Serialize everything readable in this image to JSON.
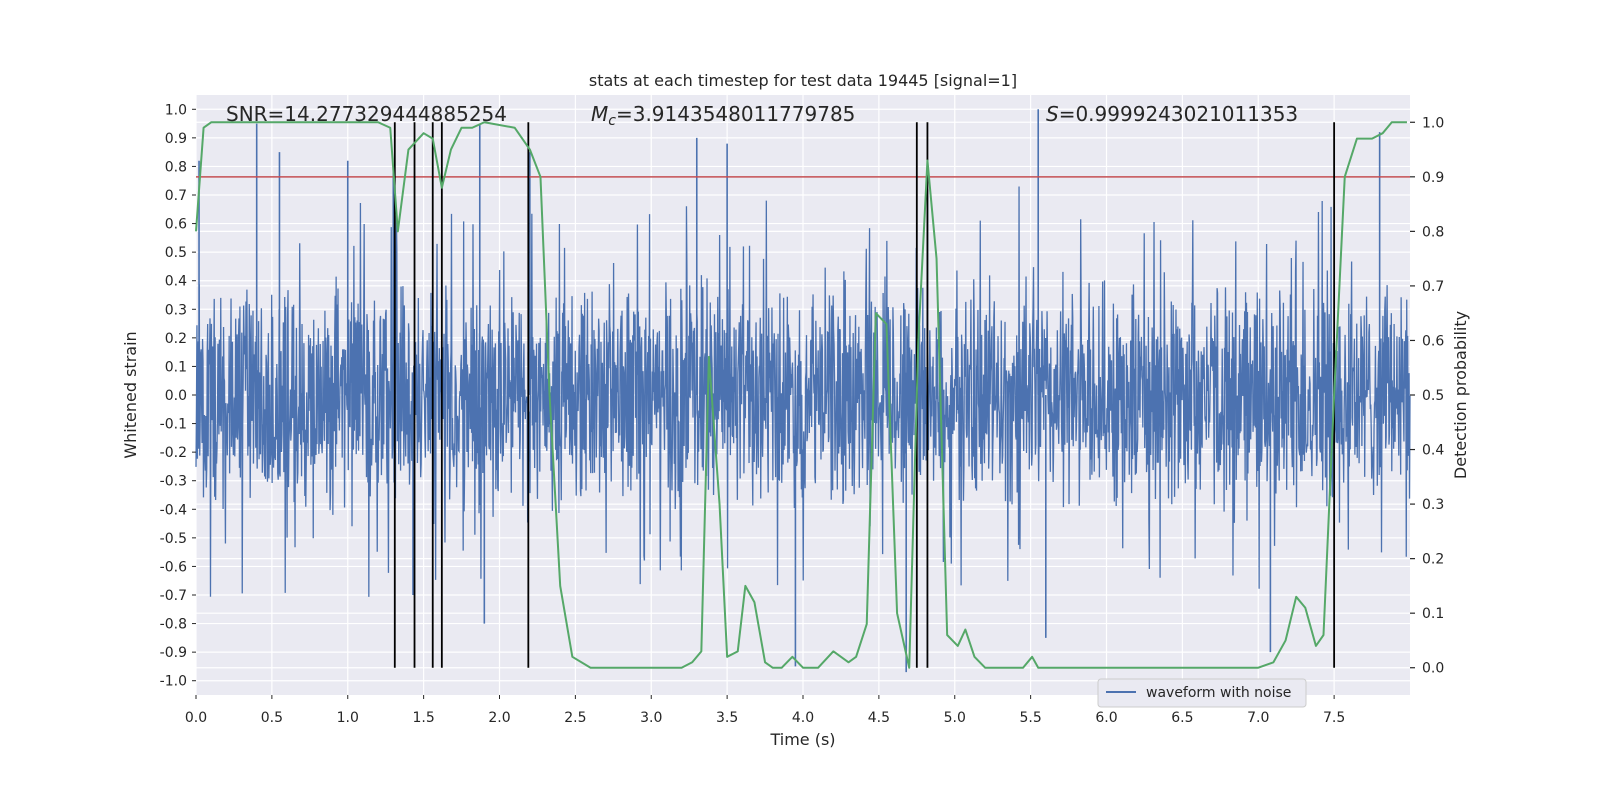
{
  "chart_data": {
    "type": "line",
    "title": "stats at each timestep for test data 19445 [signal=1]",
    "xlabel": "Time (s)",
    "ylabel": "Whitened strain",
    "y2label": "Detection probability",
    "xlim": [
      0,
      8
    ],
    "ylim": [
      -1.05,
      1.05
    ],
    "y2lim": [
      -0.05,
      1.05
    ],
    "xticks": [
      "0.0",
      "0.5",
      "1.0",
      "1.5",
      "2.0",
      "2.5",
      "3.0",
      "3.5",
      "4.0",
      "4.5",
      "5.0",
      "5.5",
      "6.0",
      "6.5",
      "7.0",
      "7.5"
    ],
    "yticks": [
      "1.0",
      "0.9",
      "0.8",
      "0.7",
      "0.6",
      "0.5",
      "0.4",
      "0.3",
      "0.2",
      "0.1",
      "0.0",
      "-0.1",
      "-0.2",
      "-0.3",
      "-0.4",
      "-0.5",
      "-0.6",
      "-0.7",
      "-0.8",
      "-0.9",
      "-1.0"
    ],
    "y2ticks": [
      "1.0",
      "0.9",
      "0.8",
      "0.7",
      "0.6",
      "0.5",
      "0.4",
      "0.3",
      "0.2",
      "0.1",
      "0.0"
    ],
    "grid": true,
    "legend_position": "lower-right",
    "annotations": {
      "snr": "SNR=14.277329444885254",
      "mc_symbol": "M",
      "mc_sub": "c",
      "mc_value": "=3.9143548011779785",
      "s_symbol": "S",
      "s_value": "=0.9999243021011353"
    },
    "threshold": 0.9,
    "vlines": [
      1.31,
      1.44,
      1.56,
      1.62,
      2.19,
      4.75,
      4.82,
      7.5
    ],
    "series": [
      {
        "name": "waveform with noise",
        "color": "#4c72b0",
        "axis": "left",
        "kind": "noise",
        "amplitude": 0.4,
        "peaks": [
          {
            "x": 0.02,
            "y": 0.82
          },
          {
            "x": 0.4,
            "y": 0.95
          },
          {
            "x": 0.55,
            "y": 0.85
          },
          {
            "x": 1.0,
            "y": 0.82
          },
          {
            "x": 1.3,
            "y": 0.78
          },
          {
            "x": 1.87,
            "y": 0.95
          },
          {
            "x": 2.2,
            "y": 0.85
          },
          {
            "x": 3.3,
            "y": 0.9
          },
          {
            "x": 3.5,
            "y": 0.88
          },
          {
            "x": 4.82,
            "y": 0.72
          },
          {
            "x": 5.55,
            "y": 1.0
          },
          {
            "x": 7.8,
            "y": 0.92
          },
          {
            "x": 3.95,
            "y": -0.95
          },
          {
            "x": 4.68,
            "y": -0.97
          },
          {
            "x": 7.08,
            "y": -0.9
          },
          {
            "x": 1.43,
            "y": -0.7
          },
          {
            "x": 1.9,
            "y": -0.8
          },
          {
            "x": 5.6,
            "y": -0.85
          }
        ]
      },
      {
        "name": "",
        "color": "#55a868",
        "axis": "right",
        "x": [
          0.0,
          0.05,
          0.1,
          1.2,
          1.28,
          1.33,
          1.4,
          1.5,
          1.56,
          1.62,
          1.68,
          1.75,
          1.82,
          1.9,
          2.1,
          2.2,
          2.27,
          2.33,
          2.4,
          2.48,
          2.6,
          3.0,
          3.2,
          3.27,
          3.33,
          3.38,
          3.45,
          3.5,
          3.57,
          3.62,
          3.68,
          3.75,
          3.8,
          3.86,
          3.93,
          4.0,
          4.1,
          4.2,
          4.3,
          4.35,
          4.42,
          4.48,
          4.55,
          4.62,
          4.7,
          4.76,
          4.82,
          4.88,
          4.95,
          5.02,
          5.07,
          5.13,
          5.2,
          5.45,
          5.51,
          5.55,
          6.0,
          6.5,
          7.0,
          7.1,
          7.18,
          7.25,
          7.31,
          7.38,
          7.43,
          7.5,
          7.57,
          7.65,
          7.75,
          7.82,
          7.88,
          7.98
        ],
        "y": [
          0.8,
          0.99,
          1.0,
          1.0,
          0.99,
          0.8,
          0.95,
          0.98,
          0.97,
          0.88,
          0.95,
          0.99,
          0.99,
          1.0,
          0.99,
          0.95,
          0.9,
          0.5,
          0.15,
          0.02,
          0.0,
          0.0,
          0.0,
          0.01,
          0.03,
          0.57,
          0.3,
          0.02,
          0.03,
          0.15,
          0.12,
          0.01,
          0.0,
          0.0,
          0.02,
          0.0,
          0.0,
          0.03,
          0.01,
          0.02,
          0.08,
          0.65,
          0.63,
          0.1,
          0.0,
          0.6,
          0.93,
          0.75,
          0.06,
          0.04,
          0.07,
          0.02,
          0.0,
          0.0,
          0.02,
          0.0,
          0.0,
          0.0,
          0.0,
          0.01,
          0.05,
          0.13,
          0.11,
          0.04,
          0.06,
          0.5,
          0.9,
          0.97,
          0.97,
          0.98,
          1.0,
          1.0
        ]
      }
    ]
  }
}
